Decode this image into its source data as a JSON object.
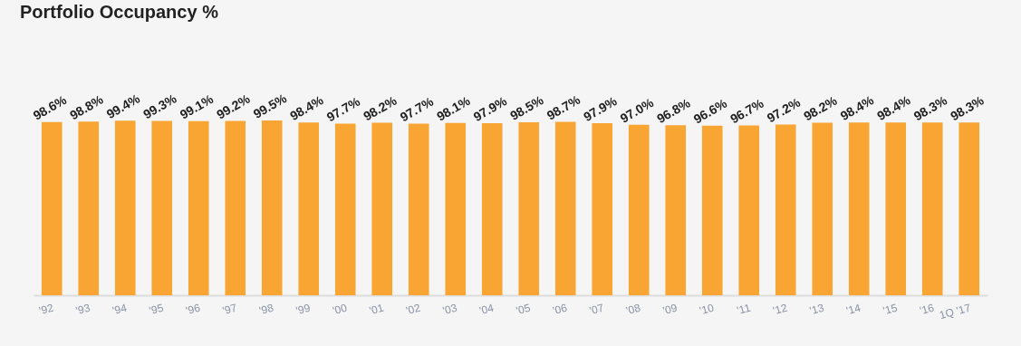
{
  "chart_data": {
    "type": "bar",
    "title": "Portfolio Occupancy %",
    "categories": [
      "'92",
      "'93",
      "'94",
      "'95",
      "'96",
      "'97",
      "'98",
      "'99",
      "'00",
      "'01",
      "'02",
      "'03",
      "'04",
      "'05",
      "'06",
      "'07",
      "'08",
      "'09",
      "'10",
      "'11",
      "'12",
      "'13",
      "'14",
      "'15",
      "'16",
      "1Q '17"
    ],
    "values": [
      98.6,
      98.8,
      99.4,
      99.3,
      99.1,
      99.2,
      99.5,
      98.4,
      97.7,
      98.2,
      97.7,
      98.1,
      97.9,
      98.5,
      98.7,
      97.9,
      97.0,
      96.8,
      96.6,
      96.7,
      97.2,
      98.2,
      98.4,
      98.4,
      98.3,
      98.3
    ],
    "value_labels": [
      "98.6%",
      "98.8%",
      "99.4%",
      "99.3%",
      "99.1%",
      "99.2%",
      "99.5%",
      "98.4%",
      "97.7%",
      "98.2%",
      "97.7%",
      "98.1%",
      "97.9%",
      "98.5%",
      "98.7%",
      "97.9%",
      "97.0%",
      "96.8%",
      "96.6%",
      "96.7%",
      "97.2%",
      "98.2%",
      "98.4%",
      "98.4%",
      "98.3%",
      "98.3%"
    ],
    "color": "#f9a533"
  }
}
